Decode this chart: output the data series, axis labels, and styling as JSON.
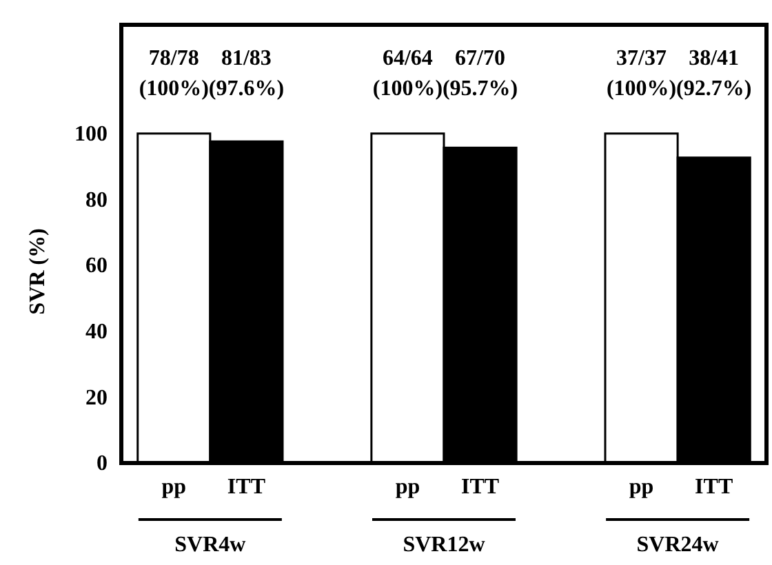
{
  "chart_data": {
    "type": "bar",
    "ylabel": "SVR (%)",
    "categories": [
      "SVR4w",
      "SVR12w",
      "SVR24w"
    ],
    "series": [
      {
        "name": "pp",
        "color": "#ffffff",
        "values": [
          100,
          100,
          100
        ],
        "value_labels": [
          "78/78\n(100%)",
          "64/64\n(100%)",
          "37/37\n(100%)"
        ]
      },
      {
        "name": "ITT",
        "color": "#000000",
        "values": [
          97.6,
          95.7,
          92.7
        ],
        "value_labels": [
          "81/83\n(97.6%)",
          "67/70\n(95.7%)",
          "38/41\n(92.7%)"
        ]
      }
    ],
    "ylim": [
      0,
      133
    ],
    "yticks": [
      0,
      20,
      40,
      60,
      80,
      100
    ],
    "grid": false
  }
}
